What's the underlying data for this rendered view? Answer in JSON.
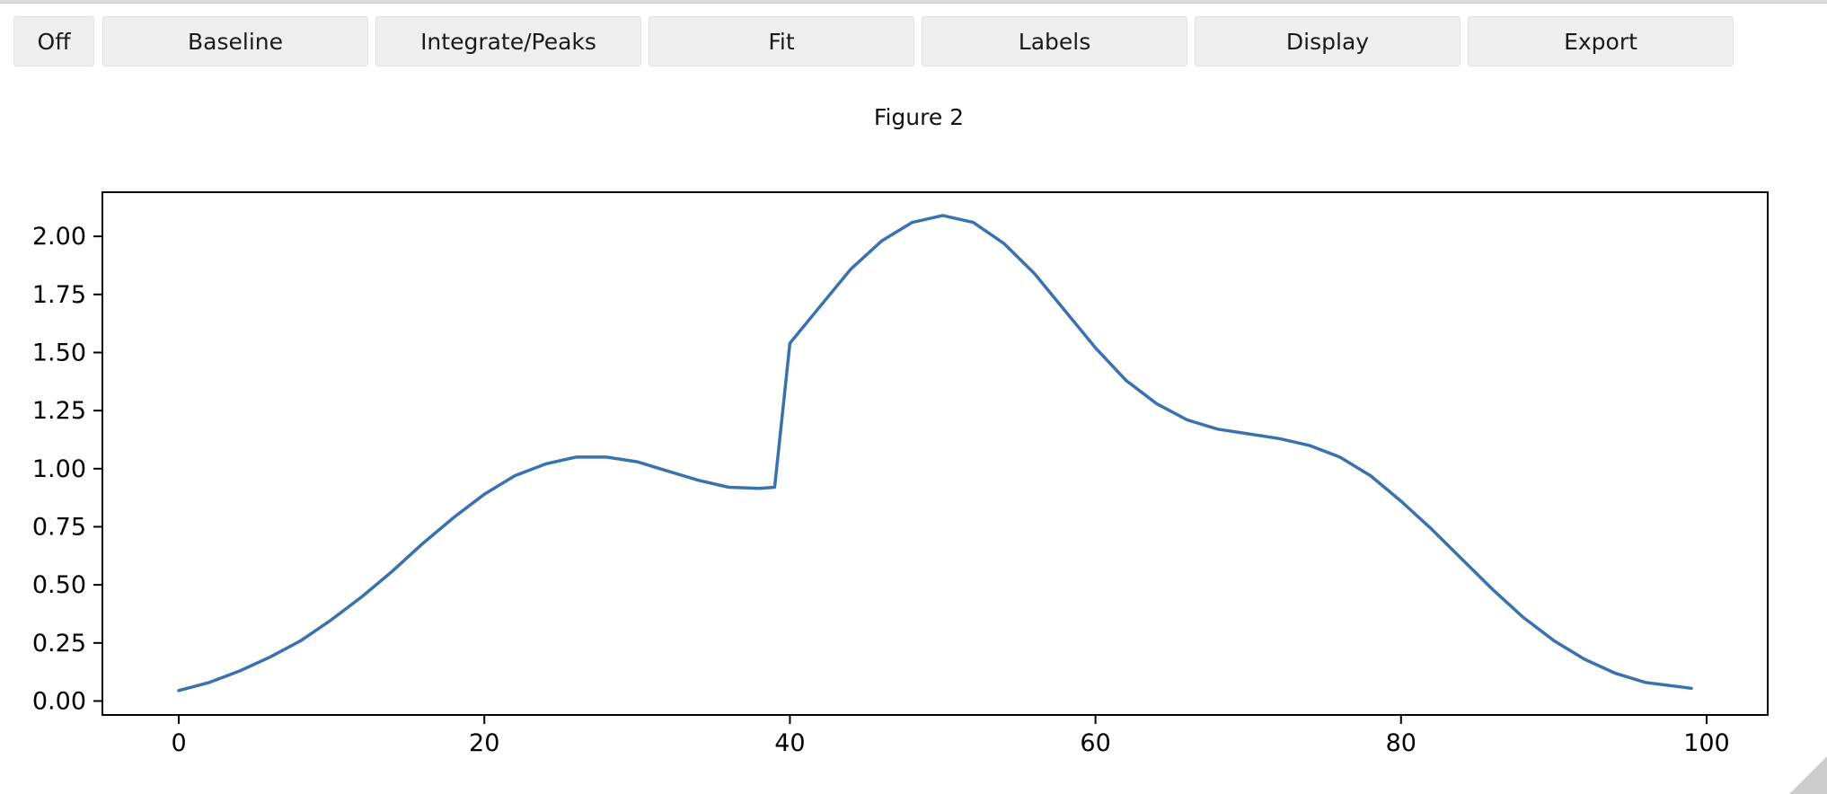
{
  "toolbar": {
    "buttons": [
      {
        "label": "Off"
      },
      {
        "label": "Baseline"
      },
      {
        "label": "Integrate/Peaks"
      },
      {
        "label": "Fit"
      },
      {
        "label": "Labels"
      },
      {
        "label": "Display"
      },
      {
        "label": "Export"
      }
    ]
  },
  "figure": {
    "title": "Figure 2"
  },
  "chart_data": {
    "type": "line",
    "title": "",
    "xlabel": "",
    "ylabel": "",
    "xlim": [
      -5,
      104
    ],
    "ylim": [
      -0.06,
      2.19
    ],
    "xticks": [
      0,
      20,
      40,
      60,
      80,
      100
    ],
    "yticks": [
      0.0,
      0.25,
      0.5,
      0.75,
      1.0,
      1.25,
      1.5,
      1.75,
      2.0
    ],
    "xtick_labels": [
      "0",
      "20",
      "40",
      "60",
      "80",
      "100"
    ],
    "ytick_labels": [
      "0.00",
      "0.25",
      "0.50",
      "0.75",
      "1.00",
      "1.25",
      "1.50",
      "1.75",
      "2.00"
    ],
    "grid": false,
    "series": [
      {
        "color": "#3a72ae",
        "x": [
          0,
          2,
          4,
          6,
          8,
          10,
          12,
          14,
          16,
          18,
          20,
          22,
          24,
          26,
          28,
          30,
          32,
          34,
          36,
          38,
          39,
          40,
          42,
          44,
          46,
          48,
          50,
          52,
          54,
          56,
          58,
          60,
          62,
          64,
          66,
          68,
          70,
          72,
          74,
          76,
          78,
          80,
          82,
          84,
          86,
          88,
          90,
          92,
          94,
          96,
          99
        ],
        "y": [
          0.045,
          0.08,
          0.13,
          0.19,
          0.26,
          0.35,
          0.45,
          0.56,
          0.68,
          0.79,
          0.89,
          0.97,
          1.02,
          1.05,
          1.05,
          1.03,
          0.99,
          0.95,
          0.92,
          0.915,
          0.92,
          1.54,
          1.7,
          1.86,
          1.98,
          2.06,
          2.09,
          2.06,
          1.97,
          1.84,
          1.68,
          1.52,
          1.38,
          1.28,
          1.21,
          1.17,
          1.15,
          1.13,
          1.1,
          1.05,
          0.97,
          0.86,
          0.74,
          0.61,
          0.48,
          0.36,
          0.26,
          0.18,
          0.12,
          0.08,
          0.055
        ]
      }
    ]
  }
}
